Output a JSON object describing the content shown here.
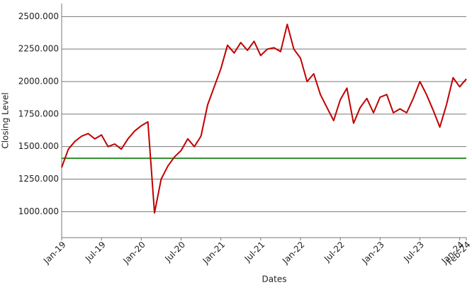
{
  "chart_data": {
    "type": "line",
    "x_label": "Dates",
    "y_label": "Closing Level",
    "x": [
      "2019-01",
      "2019-02",
      "2019-03",
      "2019-04",
      "2019-05",
      "2019-06",
      "2019-07",
      "2019-08",
      "2019-09",
      "2019-10",
      "2019-11",
      "2019-12",
      "2020-01",
      "2020-02",
      "2020-03",
      "2020-04",
      "2020-05",
      "2020-06",
      "2020-07",
      "2020-08",
      "2020-09",
      "2020-10",
      "2020-11",
      "2020-12",
      "2021-01",
      "2021-02",
      "2021-03",
      "2021-04",
      "2021-05",
      "2021-06",
      "2021-07",
      "2021-08",
      "2021-09",
      "2021-10",
      "2021-11",
      "2021-12",
      "2022-01",
      "2022-02",
      "2022-03",
      "2022-04",
      "2022-05",
      "2022-06",
      "2022-07",
      "2022-08",
      "2022-09",
      "2022-10",
      "2022-11",
      "2022-12",
      "2023-01",
      "2023-02",
      "2023-03",
      "2023-04",
      "2023-05",
      "2023-06",
      "2023-07",
      "2023-08",
      "2023-09",
      "2023-10",
      "2023-11",
      "2023-12",
      "2024-01",
      "2024-02"
    ],
    "series": [
      {
        "color": "#c00000",
        "values": [
          1340,
          1480,
          1540,
          1580,
          1600,
          1560,
          1590,
          1500,
          1520,
          1480,
          1560,
          1620,
          1660,
          1690,
          990,
          1250,
          1350,
          1420,
          1470,
          1560,
          1500,
          1580,
          1820,
          1960,
          2100,
          2280,
          2220,
          2300,
          2240,
          2310,
          2200,
          2250,
          2260,
          2230,
          2440,
          2250,
          2180,
          2000,
          2060,
          1900,
          1800,
          1700,
          1860,
          1950,
          1680,
          1800,
          1870,
          1760,
          1880,
          1900,
          1760,
          1790,
          1760,
          1870,
          2000,
          1900,
          1780,
          1650,
          1820,
          2030,
          1960,
          2020
        ]
      }
    ],
    "reference_line": {
      "value": 1410,
      "color": "#2e8b2e"
    },
    "xlim": [
      "2019-01",
      "2024-02"
    ],
    "xticks": [
      {
        "value": "2019-01",
        "label": "Jan-19"
      },
      {
        "value": "2019-07",
        "label": "Jul-19"
      },
      {
        "value": "2020-01",
        "label": "Jan-20"
      },
      {
        "value": "2020-07",
        "label": "Jul-20"
      },
      {
        "value": "2021-01",
        "label": "Jan-21"
      },
      {
        "value": "2021-07",
        "label": "Jul-21"
      },
      {
        "value": "2022-01",
        "label": "Jan-22"
      },
      {
        "value": "2022-07",
        "label": "Jul-22"
      },
      {
        "value": "2023-01",
        "label": "Jan-23"
      },
      {
        "value": "2023-07",
        "label": "Jul-23"
      },
      {
        "value": "2024-01",
        "label": "Jan-24"
      },
      {
        "value": "2024-02",
        "label": "Feb-24"
      }
    ],
    "ylim": [
      800,
      2600
    ],
    "yticks": [
      {
        "value": 1000,
        "label": "1000.000"
      },
      {
        "value": 1250,
        "label": "1250.000"
      },
      {
        "value": 1500,
        "label": "1500.000"
      },
      {
        "value": 1750,
        "label": "1750.000"
      },
      {
        "value": 2000,
        "label": "2000.000"
      },
      {
        "value": 2250,
        "label": "2250.000"
      },
      {
        "value": 2500,
        "label": "2500.000"
      }
    ],
    "grid": true
  }
}
